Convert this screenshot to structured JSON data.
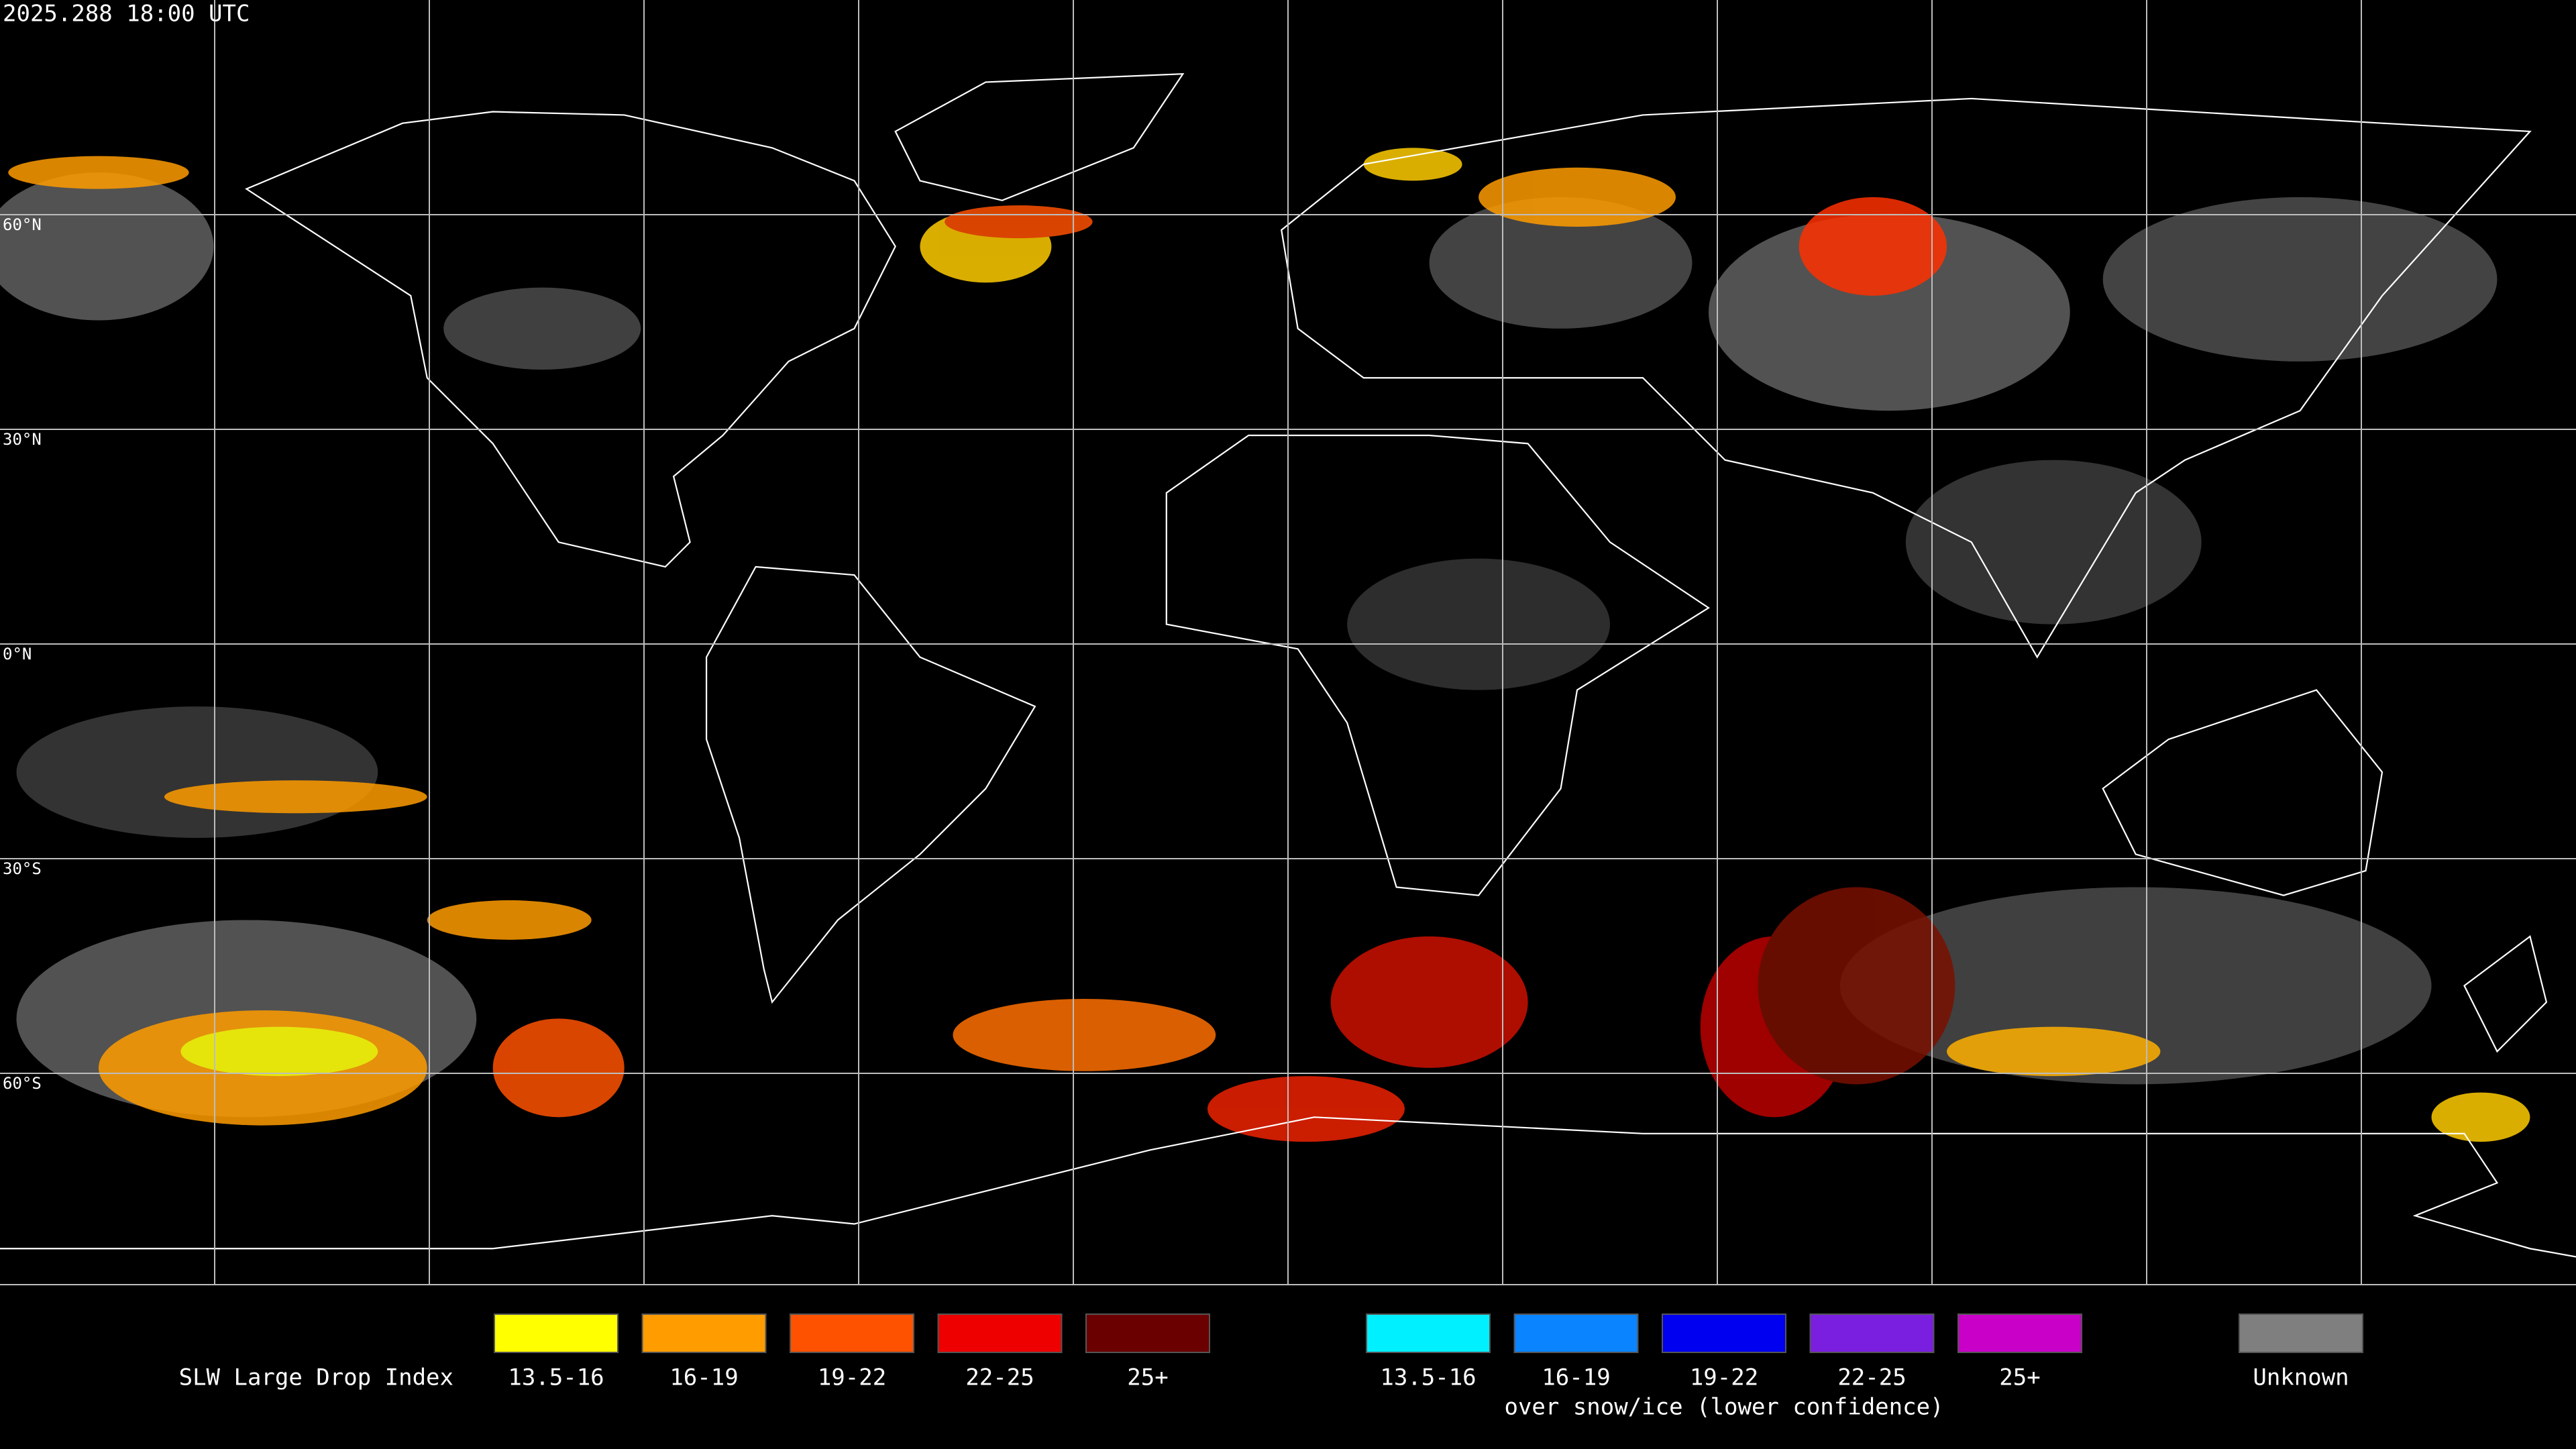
{
  "timestamp": "2025.288 18:00 UTC",
  "map": {
    "lat_labels": [
      "60°N",
      "30°N",
      "0°N",
      "30°S",
      "60°S"
    ]
  },
  "legend": {
    "title": "SLW Large Drop Index",
    "groups": [
      {
        "items": [
          {
            "label": "13.5-16",
            "color": "#ffff00"
          },
          {
            "label": "16-19",
            "color": "#ff9c00"
          },
          {
            "label": "19-22",
            "color": "#ff5200"
          },
          {
            "label": "22-25",
            "color": "#ee0000"
          },
          {
            "label": "25+",
            "color": "#6b0000"
          }
        ]
      },
      {
        "subtitle": "over snow/ice (lower confidence)",
        "items": [
          {
            "label": "13.5-16",
            "color": "#00f0ff"
          },
          {
            "label": "16-19",
            "color": "#0a84ff"
          },
          {
            "label": "19-22",
            "color": "#0000f0"
          },
          {
            "label": "22-25",
            "color": "#7a1fe0"
          },
          {
            "label": "25+",
            "color": "#c800c8"
          }
        ]
      }
    ],
    "unknown": {
      "label": "Unknown",
      "color": "#7f7f7f"
    }
  }
}
